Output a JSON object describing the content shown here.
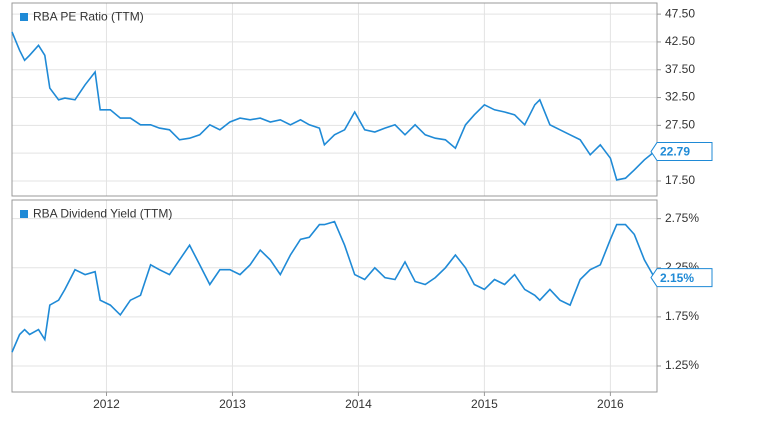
{
  "chart_data": [
    {
      "type": "line",
      "x": [
        2011.25,
        2011.31,
        2011.35,
        2011.39,
        2011.46,
        2011.51,
        2011.55,
        2011.62,
        2011.67,
        2011.75,
        2011.83,
        2011.91,
        2011.95,
        2012.03,
        2012.11,
        2012.19,
        2012.27,
        2012.35,
        2012.42,
        2012.5,
        2012.58,
        2012.66,
        2012.74,
        2012.82,
        2012.9,
        2012.98,
        2013.06,
        2013.14,
        2013.22,
        2013.3,
        2013.38,
        2013.46,
        2013.54,
        2013.61,
        2013.69,
        2013.73,
        2013.81,
        2013.89,
        2013.97,
        2014.05,
        2014.13,
        2014.21,
        2014.29,
        2014.37,
        2014.45,
        2014.53,
        2014.61,
        2014.69,
        2014.77,
        2014.85,
        2014.92,
        2015.0,
        2015.08,
        2015.16,
        2015.24,
        2015.32,
        2015.4,
        2015.44,
        2015.52,
        2015.6,
        2015.68,
        2015.76,
        2015.84,
        2015.92,
        2016.0,
        2016.05,
        2016.12,
        2016.19,
        2016.27,
        2016.35
      ],
      "series": [
        {
          "name": "RBA PE Ratio (TTM)",
          "color": "#1f8ad6",
          "values": [
            44.3,
            41,
            39.2,
            40.1,
            41.9,
            40.1,
            34.2,
            32.1,
            32.4,
            32.1,
            34.8,
            37.1,
            30.3,
            30.3,
            28.8,
            28.8,
            27.6,
            27.6,
            27.0,
            26.7,
            24.9,
            25.2,
            25.8,
            27.6,
            26.7,
            28.1,
            28.8,
            28.5,
            28.8,
            28.1,
            28.5,
            27.6,
            28.5,
            27.6,
            27.0,
            24.0,
            25.8,
            26.7,
            29.9,
            26.7,
            26.3,
            27.0,
            27.6,
            25.8,
            27.6,
            25.8,
            25.2,
            24.9,
            23.4,
            27.6,
            29.4,
            31.2,
            30.3,
            29.9,
            29.4,
            27.6,
            31.2,
            32.1,
            27.6,
            26.7,
            25.8,
            24.9,
            22.2,
            24.0,
            21.6,
            17.7,
            18.0,
            19.5,
            21.3,
            22.79
          ],
          "value_labels": [
            null,
            null,
            null,
            null,
            null,
            null,
            null,
            null,
            null,
            null,
            null,
            null,
            null,
            null,
            null,
            null,
            null,
            null,
            null,
            null,
            null,
            null,
            null,
            null,
            null,
            null,
            null,
            null,
            null,
            null,
            null,
            null,
            null,
            null,
            null,
            null,
            null,
            null,
            null,
            null,
            null,
            null,
            null,
            null,
            null,
            null,
            null,
            null,
            null,
            null,
            null,
            null,
            null,
            null,
            null,
            null,
            null,
            null,
            null,
            null,
            null,
            null,
            null,
            null,
            null,
            null,
            null,
            null,
            null,
            "22.79"
          ]
        }
      ],
      "xlim": [
        2011.25,
        2016.37
      ],
      "xticks": [
        2012,
        2013,
        2014,
        2015,
        2016
      ],
      "ylim": [
        14.8,
        49.5
      ],
      "yticks": [
        {
          "value": 17.5,
          "label": "17.50"
        },
        {
          "value": 22.5,
          "label": "22.50"
        },
        {
          "value": 27.5,
          "label": "27.50"
        },
        {
          "value": 32.5,
          "label": "32.50"
        },
        {
          "value": 37.5,
          "label": "37.50"
        },
        {
          "value": 42.5,
          "label": "42.50"
        },
        {
          "value": 47.5,
          "label": "47.50"
        }
      ],
      "grid": true
    },
    {
      "type": "line",
      "x": [
        2011.25,
        2011.31,
        2011.35,
        2011.39,
        2011.46,
        2011.51,
        2011.55,
        2011.62,
        2011.67,
        2011.75,
        2011.83,
        2011.91,
        2011.95,
        2012.03,
        2012.11,
        2012.19,
        2012.27,
        2012.35,
        2012.42,
        2012.5,
        2012.58,
        2012.66,
        2012.74,
        2012.82,
        2012.9,
        2012.98,
        2013.06,
        2013.14,
        2013.22,
        2013.3,
        2013.38,
        2013.46,
        2013.54,
        2013.61,
        2013.69,
        2013.73,
        2013.81,
        2013.89,
        2013.97,
        2014.05,
        2014.13,
        2014.21,
        2014.29,
        2014.37,
        2014.45,
        2014.53,
        2014.61,
        2014.69,
        2014.77,
        2014.85,
        2014.92,
        2015.0,
        2015.08,
        2015.16,
        2015.24,
        2015.32,
        2015.4,
        2015.44,
        2015.52,
        2015.6,
        2015.68,
        2015.76,
        2015.84,
        2015.92,
        2016.0,
        2016.05,
        2016.12,
        2016.19,
        2016.27,
        2016.35
      ],
      "series": [
        {
          "name": "RBA Dividend Yield (TTM)",
          "color": "#1f8ad6",
          "values": [
            1.39,
            1.57,
            1.62,
            1.57,
            1.62,
            1.52,
            1.87,
            1.92,
            2.03,
            2.23,
            2.18,
            2.21,
            1.92,
            1.87,
            1.77,
            1.92,
            1.97,
            2.28,
            2.23,
            2.18,
            2.33,
            2.48,
            2.28,
            2.08,
            2.23,
            2.23,
            2.18,
            2.28,
            2.43,
            2.33,
            2.18,
            2.38,
            2.54,
            2.56,
            2.69,
            2.69,
            2.72,
            2.48,
            2.18,
            2.13,
            2.25,
            2.15,
            2.13,
            2.31,
            2.11,
            2.08,
            2.15,
            2.25,
            2.38,
            2.25,
            2.08,
            2.03,
            2.13,
            2.08,
            2.18,
            2.03,
            1.97,
            1.92,
            2.03,
            1.92,
            1.87,
            2.13,
            2.23,
            2.28,
            2.54,
            2.69,
            2.69,
            2.59,
            2.33,
            2.15
          ],
          "value_labels": [
            null,
            null,
            null,
            null,
            null,
            null,
            null,
            null,
            null,
            null,
            null,
            null,
            null,
            null,
            null,
            null,
            null,
            null,
            null,
            null,
            null,
            null,
            null,
            null,
            null,
            null,
            null,
            null,
            null,
            null,
            null,
            null,
            null,
            null,
            null,
            null,
            null,
            null,
            null,
            null,
            null,
            null,
            null,
            null,
            null,
            null,
            null,
            null,
            null,
            null,
            null,
            null,
            null,
            null,
            null,
            null,
            null,
            null,
            null,
            null,
            null,
            null,
            null,
            null,
            null,
            null,
            null,
            null,
            null,
            "2.15%"
          ]
        }
      ],
      "xlim": [
        2011.25,
        2016.37
      ],
      "xticks": [
        2012,
        2013,
        2014,
        2015,
        2016
      ],
      "ylim": [
        0.985,
        2.94
      ],
      "yticks": [
        {
          "value": 1.25,
          "label": "1.25%"
        },
        {
          "value": 1.75,
          "label": "1.75%"
        },
        {
          "value": 2.25,
          "label": "2.25%"
        },
        {
          "value": 2.75,
          "label": "2.75%"
        }
      ],
      "grid": true
    }
  ]
}
